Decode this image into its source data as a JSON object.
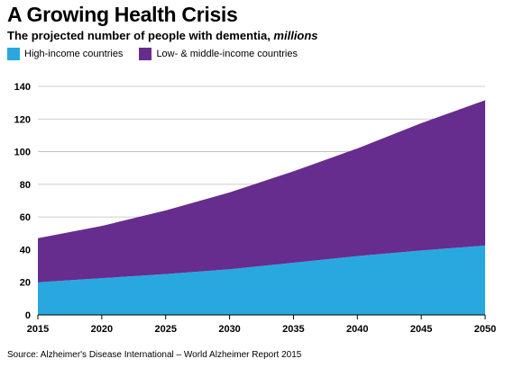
{
  "header": {
    "title": "A Growing Health Crisis",
    "subtitle_main": "The projected number of people with dementia, ",
    "subtitle_unit": "millions"
  },
  "footer": {
    "source": "Source: Alzheimer's Disease International – World Alzheimer Report 2015"
  },
  "chart_data": {
    "type": "area",
    "stacked": true,
    "x": [
      2015,
      2020,
      2025,
      2030,
      2035,
      2040,
      2045,
      2050
    ],
    "series": [
      {
        "name": "High-income countries",
        "color": "#29a8e0",
        "values": [
          20,
          22.5,
          25,
          28,
          32,
          36,
          39.5,
          42.5
        ]
      },
      {
        "name": "Low- & middle-income countries",
        "color": "#662d8e",
        "values": [
          27,
          32,
          39,
          47,
          56,
          66,
          78,
          89
        ]
      }
    ],
    "ylim": [
      0,
      140
    ],
    "yticks": [
      0,
      20,
      40,
      60,
      80,
      100,
      120,
      140
    ],
    "xticks": [
      "2015",
      "2020",
      "2025",
      "2030",
      "2035",
      "2040",
      "2045",
      "2050"
    ],
    "grid": true,
    "legend": "top-left"
  }
}
